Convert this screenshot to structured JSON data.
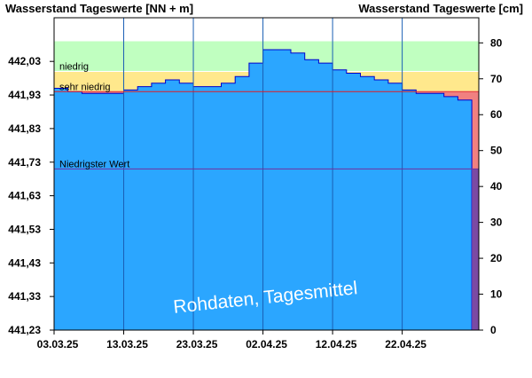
{
  "chart_data": {
    "type": "area",
    "title_left": "Wasserstand Tageswerte [NN + m]",
    "title_right": "Wasserstand Tageswerte [cm]",
    "watermark": "Rohdaten, Tagesmittel",
    "x_tick_labels": [
      "03.03.25",
      "13.03.25",
      "23.03.25",
      "02.04.25",
      "12.04.25",
      "22.04.25"
    ],
    "x_start": "2025-03-03",
    "x_end": "2025-05-03",
    "y_left_ticks": [
      "441,23",
      "441,33",
      "441,43",
      "441,53",
      "441,63",
      "441,73",
      "441,83",
      "441,93",
      "442,03"
    ],
    "ylim_left": [
      441.23,
      442.16
    ],
    "y_right_ticks": [
      "0",
      "10",
      "20",
      "30",
      "40",
      "50",
      "60",
      "70",
      "80"
    ],
    "ylim_right": [
      0,
      87
    ],
    "zones": [
      {
        "label": "niedrig",
        "from": 442.0,
        "to": 442.09,
        "color": "#c0ffc0"
      },
      {
        "label": "sehr niedrig",
        "from": 441.94,
        "to": 442.0,
        "color": "#ffe88c"
      },
      {
        "label": "",
        "from": 441.23,
        "to": 441.94,
        "color": "#f08080"
      }
    ],
    "reference_lines": [
      {
        "label": "Niedrigster Wert",
        "value": 441.71,
        "color": "#7030a0"
      }
    ],
    "series": [
      {
        "dates": [
          "2025-03-03",
          "2025-03-05",
          "2025-03-07",
          "2025-03-09",
          "2025-03-11",
          "2025-03-13",
          "2025-03-15",
          "2025-03-17",
          "2025-03-19",
          "2025-03-21",
          "2025-03-23",
          "2025-03-25",
          "2025-03-27",
          "2025-03-29",
          "2025-03-31",
          "2025-04-02",
          "2025-04-04",
          "2025-04-06",
          "2025-04-08",
          "2025-04-10",
          "2025-04-12",
          "2025-04-14",
          "2025-04-16",
          "2025-04-18",
          "2025-04-20",
          "2025-04-22",
          "2025-04-24",
          "2025-04-26",
          "2025-04-28",
          "2025-04-30"
        ],
        "values": [
          441.95,
          441.94,
          441.935,
          441.935,
          441.935,
          441.945,
          441.955,
          441.965,
          441.975,
          441.965,
          441.955,
          441.955,
          441.965,
          441.985,
          442.025,
          442.065,
          442.065,
          442.055,
          442.035,
          442.025,
          442.005,
          441.995,
          441.985,
          441.975,
          441.965,
          441.945,
          441.935,
          441.935,
          441.925,
          441.915
        ],
        "color": "#2ba6ff"
      }
    ]
  }
}
